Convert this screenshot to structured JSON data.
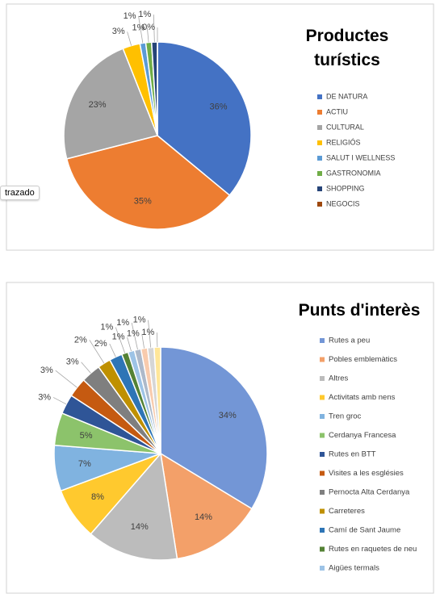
{
  "tooltip": "trazado",
  "chart_data": [
    {
      "type": "pie",
      "title": "Productes turístics",
      "legend": "right",
      "categories": [
        "DE NATURA",
        "ACTIU",
        "CULTURAL",
        "RELIGIÓS",
        "SALUT I WELLNESS",
        "GASTRONOMIA",
        "SHOPPING",
        "NEGOCIS"
      ],
      "values": [
        36,
        35,
        23,
        3,
        1,
        1,
        1,
        0
      ],
      "value_labels": [
        "36%",
        "35%",
        "23%",
        "3%",
        "1%",
        "1%",
        "1%",
        "0%"
      ],
      "colors": [
        "#4472c4",
        "#ed7d31",
        "#a5a5a5",
        "#ffc000",
        "#5b9bd5",
        "#70ad47",
        "#264478",
        "#9e480e"
      ]
    },
    {
      "type": "pie",
      "title": "Punts d'interès",
      "legend": "right",
      "categories": [
        "Rutes a peu",
        "Pobles emblemàtics",
        "Altres",
        "Activitats amb nens",
        "Tren groc",
        "Cerdanya Francesa",
        "Rutes en BTT",
        "Visites a les esglésies",
        "Pernocta Alta Cerdanya",
        "Carreteres",
        "Camí de Sant Jaume",
        "Rutes en raquetes de neu",
        "Aigües termals",
        null,
        null,
        null,
        null
      ],
      "values": [
        34,
        14,
        14,
        8,
        7,
        5,
        3,
        3,
        3,
        2,
        2,
        1,
        1,
        1,
        1,
        1,
        1
      ],
      "value_labels": [
        "34%",
        "14%",
        "14%",
        "8%",
        "7%",
        "5%",
        "3%",
        "3%",
        "3%",
        "2%",
        "2%",
        "1%",
        "1%",
        "1%",
        "1%",
        "1%",
        "1%"
      ],
      "colors": [
        "#7396d6",
        "#f3a069",
        "#bcbcbc",
        "#ffc92e",
        "#80b3e0",
        "#8cc36b",
        "#2f5597",
        "#c55a11",
        "#7f7f7f",
        "#bf9000",
        "#2e75b6",
        "#548235",
        "#9dc3e6",
        "#adb9ca",
        "#f8cbad",
        "#d6d6d6",
        "#ffe699"
      ]
    }
  ]
}
